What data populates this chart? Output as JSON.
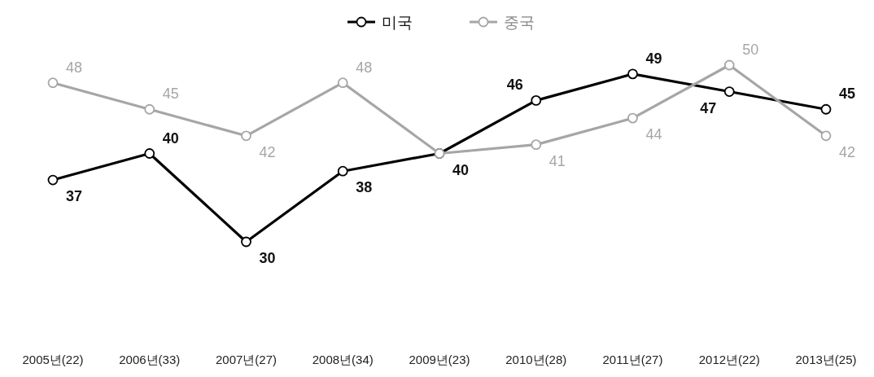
{
  "chart_data": {
    "type": "line",
    "categories": [
      "2005년(22)",
      "2006년(33)",
      "2007년(27)",
      "2008년(34)",
      "2009년(23)",
      "2010년(28)",
      "2011년(27)",
      "2012년(22)",
      "2013년(25)"
    ],
    "series": [
      {
        "name": "미국",
        "color": "#000000",
        "values": [
          37,
          40,
          30,
          38,
          40,
          46,
          49,
          47,
          45
        ],
        "value_labels": [
          "37",
          "40",
          "30",
          "38",
          "40",
          "46",
          "49",
          "47",
          "45"
        ]
      },
      {
        "name": "중국",
        "color": "#a6a6a6",
        "values": [
          48,
          45,
          42,
          48,
          40,
          41,
          44,
          50,
          42
        ],
        "value_labels": [
          "48",
          "45",
          "42",
          "48",
          null,
          "41",
          "44",
          "50",
          "42"
        ]
      }
    ],
    "legend": "top",
    "marker": "circle"
  }
}
